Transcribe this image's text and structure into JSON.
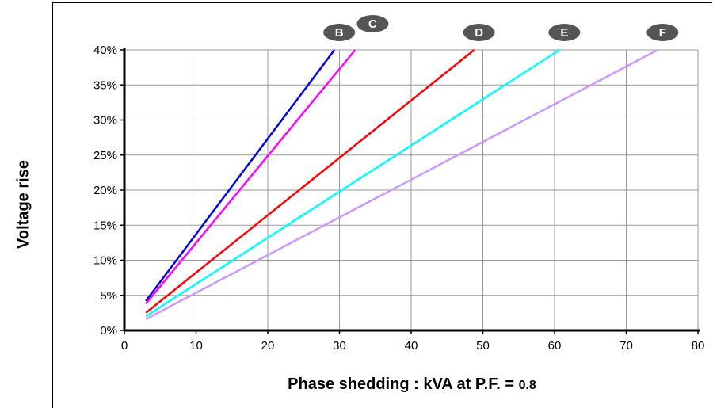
{
  "chart_data": {
    "type": "line",
    "title": "",
    "xlabel": "Phase shedding : kVA at P.F. = ",
    "xlabel_value": "0.8",
    "ylabel": "Voltage rise",
    "xlim": [
      0,
      80
    ],
    "ylim": [
      0,
      40
    ],
    "x_ticks": [
      "0",
      "10",
      "20",
      "30",
      "40",
      "50",
      "60",
      "70",
      "80"
    ],
    "y_ticks": [
      "0%",
      "5%",
      "10%",
      "15%",
      "20%",
      "25%",
      "30%",
      "35%",
      "40%"
    ],
    "grid": true,
    "series": [
      {
        "name": "B",
        "color": "#0000dd",
        "x": [
          3,
          29.3
        ],
        "y": [
          4.2,
          40
        ]
      },
      {
        "name": "C",
        "color": "#ff00ff",
        "x": [
          3,
          32.2
        ],
        "y": [
          3.8,
          40
        ]
      },
      {
        "name": "D",
        "color": "#ff0000",
        "x": [
          3,
          48.8
        ],
        "y": [
          2.5,
          40
        ]
      },
      {
        "name": "E",
        "color": "#00ffff",
        "x": [
          3,
          60.7
        ],
        "y": [
          2.0,
          40
        ]
      },
      {
        "name": "F",
        "color": "#cc99ff",
        "x": [
          3,
          74.4
        ],
        "y": [
          1.6,
          40
        ]
      }
    ],
    "badge_color": "#555555"
  }
}
